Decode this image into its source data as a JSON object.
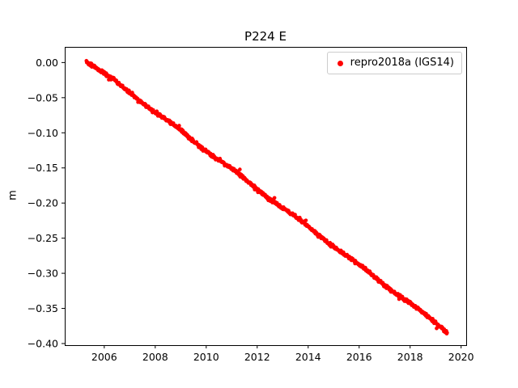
{
  "chart_data": {
    "type": "scatter",
    "title": "P224 E",
    "xlabel": "",
    "ylabel": "m",
    "xlim": [
      2004.45,
      2020.2
    ],
    "ylim": [
      -0.4023,
      0.0223
    ],
    "xticks": [
      2006,
      2008,
      2010,
      2012,
      2014,
      2016,
      2018,
      2020
    ],
    "xticklabels": [
      "2006",
      "2008",
      "2010",
      "2012",
      "2014",
      "2016",
      "2018",
      "2020"
    ],
    "yticks": [
      0.0,
      -0.05,
      -0.1,
      -0.15,
      -0.2,
      -0.25,
      -0.3,
      -0.35,
      -0.4
    ],
    "yticklabels": [
      "0.00",
      "−0.05",
      "−0.10",
      "−0.15",
      "−0.20",
      "−0.25",
      "−0.30",
      "−0.35",
      "−0.40"
    ],
    "grid": false,
    "legend": {
      "position": "upper right",
      "entries": [
        "repro2018a (IGS14)"
      ]
    },
    "series": [
      {
        "name": "repro2018a (IGS14)",
        "color": "#ff0000",
        "marker": "dot",
        "trend": {
          "x_start": 2005.3,
          "x_end": 2019.45,
          "y_start": 0.003,
          "y_end": -0.383,
          "slope_m_per_yr": -0.0273
        },
        "points": [
          [
            2005.3,
            0.003
          ],
          [
            2006,
            -0.016
          ],
          [
            2007,
            -0.043
          ],
          [
            2008,
            -0.07
          ],
          [
            2009,
            -0.098
          ],
          [
            2010,
            -0.125
          ],
          [
            2011,
            -0.152
          ],
          [
            2012,
            -0.18
          ],
          [
            2013,
            -0.207
          ],
          [
            2014,
            -0.234
          ],
          [
            2015,
            -0.261
          ],
          [
            2016,
            -0.289
          ],
          [
            2017,
            -0.316
          ],
          [
            2018,
            -0.343
          ],
          [
            2019,
            -0.371
          ],
          [
            2019.45,
            -0.383
          ]
        ],
        "scatter_band_m": 0.0035
      }
    ]
  }
}
